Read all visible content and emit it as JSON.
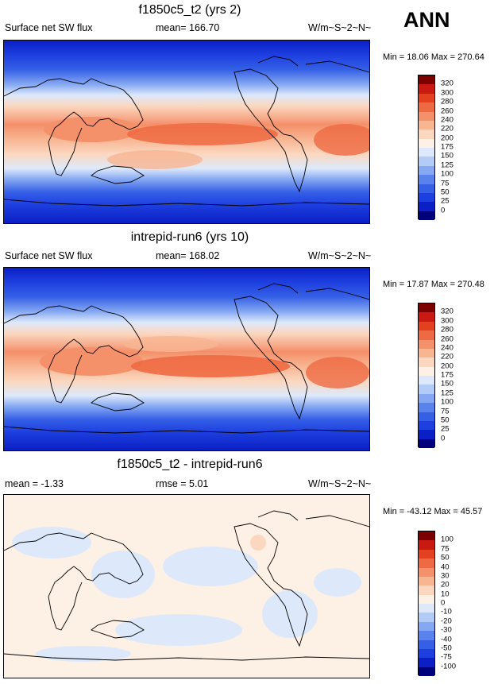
{
  "season": "ANN",
  "panels": [
    {
      "title": "f1850c5_t2 (yrs 2)",
      "left_label": "Surface net SW flux",
      "mid_label": "mean= 166.70",
      "units": "W/m~S~2~N~",
      "minmax": "Min = 18.06 Max = 270.64",
      "field": "absolute"
    },
    {
      "title": "intrepid-run6 (yrs 10)",
      "left_label": "Surface net SW flux",
      "mid_label": "mean= 168.02",
      "units": "W/m~S~2~N~",
      "minmax": "Min = 17.87 Max = 270.48",
      "field": "absolute"
    },
    {
      "title": "f1850c5_t2 - intrepid-run6",
      "left_label": "mean =  -1.33",
      "mid_label": "rmse =   5.01",
      "units": "W/m~S~2~N~",
      "minmax": "Min = -43.12 Max =  45.57",
      "field": "difference"
    }
  ],
  "chart_data": [
    {
      "type": "heatmap",
      "title": "f1850c5_t2 (yrs 2)",
      "variable": "Surface net SW flux",
      "units": "W/m~S~2~N~",
      "mean": 166.7,
      "min": 18.06,
      "max": 270.64,
      "colorbar_levels": [
        0,
        25,
        50,
        75,
        100,
        125,
        150,
        175,
        200,
        220,
        240,
        260,
        280,
        300,
        320
      ],
      "colorbar_colors": [
        "#00007a",
        "#0a1fc4",
        "#1e3fe0",
        "#3560e6",
        "#5a82ec",
        "#86a8f2",
        "#b3cbf7",
        "#dde9fb",
        "#fdf0e4",
        "#fbd7bf",
        "#f8b592",
        "#f4906a",
        "#ee6a42",
        "#e2401f",
        "#c81a10",
        "#7c0000"
      ],
      "latitude_profile": {
        "lat": [
          90,
          60,
          40,
          20,
          0,
          -20,
          -40,
          -60,
          -90
        ],
        "value": [
          30,
          80,
          170,
          220,
          215,
          225,
          150,
          60,
          20
        ]
      }
    },
    {
      "type": "heatmap",
      "title": "intrepid-run6 (yrs 10)",
      "variable": "Surface net SW flux",
      "units": "W/m~S~2~N~",
      "mean": 168.02,
      "min": 17.87,
      "max": 270.48,
      "colorbar_levels": [
        0,
        25,
        50,
        75,
        100,
        125,
        150,
        175,
        200,
        220,
        240,
        260,
        280,
        300,
        320
      ],
      "colorbar_colors": [
        "#00007a",
        "#0a1fc4",
        "#1e3fe0",
        "#3560e6",
        "#5a82ec",
        "#86a8f2",
        "#b3cbf7",
        "#dde9fb",
        "#fdf0e4",
        "#fbd7bf",
        "#f8b592",
        "#f4906a",
        "#ee6a42",
        "#e2401f",
        "#c81a10",
        "#7c0000"
      ],
      "latitude_profile": {
        "lat": [
          90,
          60,
          40,
          20,
          0,
          -20,
          -40,
          -60,
          -90
        ],
        "value": [
          30,
          80,
          170,
          222,
          218,
          228,
          150,
          60,
          20
        ]
      }
    },
    {
      "type": "heatmap",
      "title": "f1850c5_t2 - intrepid-run6",
      "variable": "difference",
      "units": "W/m~S~2~N~",
      "mean": -1.33,
      "rmse": 5.01,
      "min": -43.12,
      "max": 45.57,
      "colorbar_levels": [
        -100,
        -75,
        -50,
        -40,
        -30,
        -20,
        -10,
        0,
        10,
        20,
        30,
        40,
        50,
        75,
        100
      ],
      "colorbar_colors": [
        "#00007a",
        "#0a1fc4",
        "#1e3fe0",
        "#3560e6",
        "#5a82ec",
        "#86a8f2",
        "#b3cbf7",
        "#dde9fb",
        "#fdf0e4",
        "#fbd7bf",
        "#f8b592",
        "#f4906a",
        "#ee6a42",
        "#e2401f",
        "#c81a10",
        "#7c0000"
      ]
    }
  ]
}
